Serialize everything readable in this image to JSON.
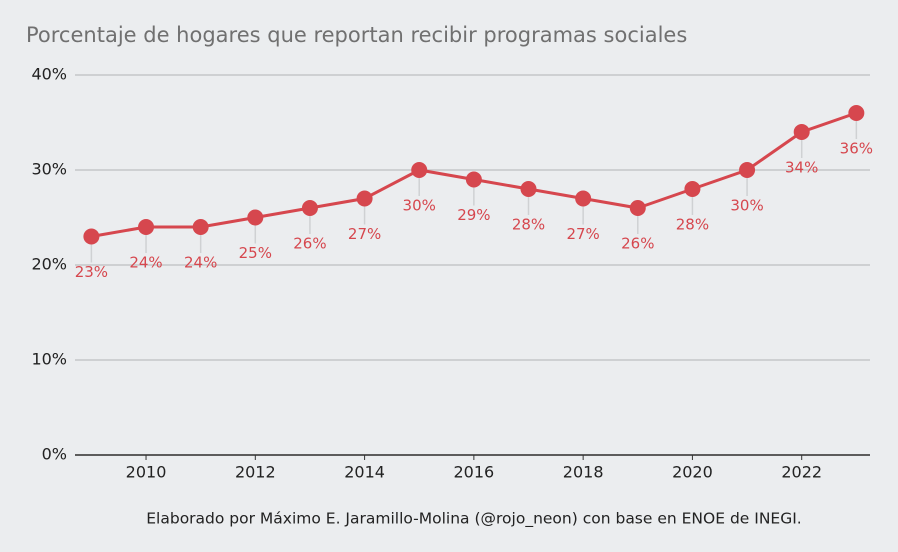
{
  "chart_data": {
    "type": "line",
    "title": "Porcentaje de hogares que reportan recibir programas sociales",
    "caption": "Elaborado por Máximo E. Jaramillo-Molina (@rojo_neon) con base en ENOE de INEGI.",
    "x": [
      2009,
      2010,
      2011,
      2012,
      2013,
      2014,
      2015,
      2016,
      2017,
      2018,
      2019,
      2020,
      2021,
      2022,
      2023
    ],
    "values": [
      23,
      24,
      24,
      25,
      26,
      27,
      30,
      29,
      28,
      27,
      26,
      28,
      30,
      34,
      36
    ],
    "value_labels": [
      "23%",
      "24%",
      "24%",
      "25%",
      "26%",
      "27%",
      "30%",
      "29%",
      "28%",
      "27%",
      "26%",
      "28%",
      "30%",
      "34%",
      "36%"
    ],
    "color": "#d6474e",
    "xlim": [
      2008.7,
      2023.25
    ],
    "xticks": [
      2010,
      2012,
      2014,
      2016,
      2018,
      2020,
      2022
    ],
    "ylim": [
      0,
      40
    ],
    "yticks": [
      {
        "value": 0,
        "label": "0%"
      },
      {
        "value": 10,
        "label": "10%"
      },
      {
        "value": 20,
        "label": "20%"
      },
      {
        "value": 30,
        "label": "30%"
      },
      {
        "value": 40,
        "label": "40%"
      }
    ],
    "grid": true
  }
}
